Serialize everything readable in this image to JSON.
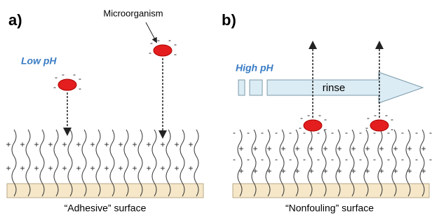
{
  "panels": [
    {
      "label": "a)",
      "ph": "Low pH",
      "caption": "“Adhesive” surface"
    },
    {
      "label": "b)",
      "ph": "High pH",
      "caption": "“Nonfouling” surface"
    }
  ],
  "microorganism": "Microorganism",
  "rinse": "rinse",
  "charges": {
    "positive": "+",
    "negative": "-"
  }
}
